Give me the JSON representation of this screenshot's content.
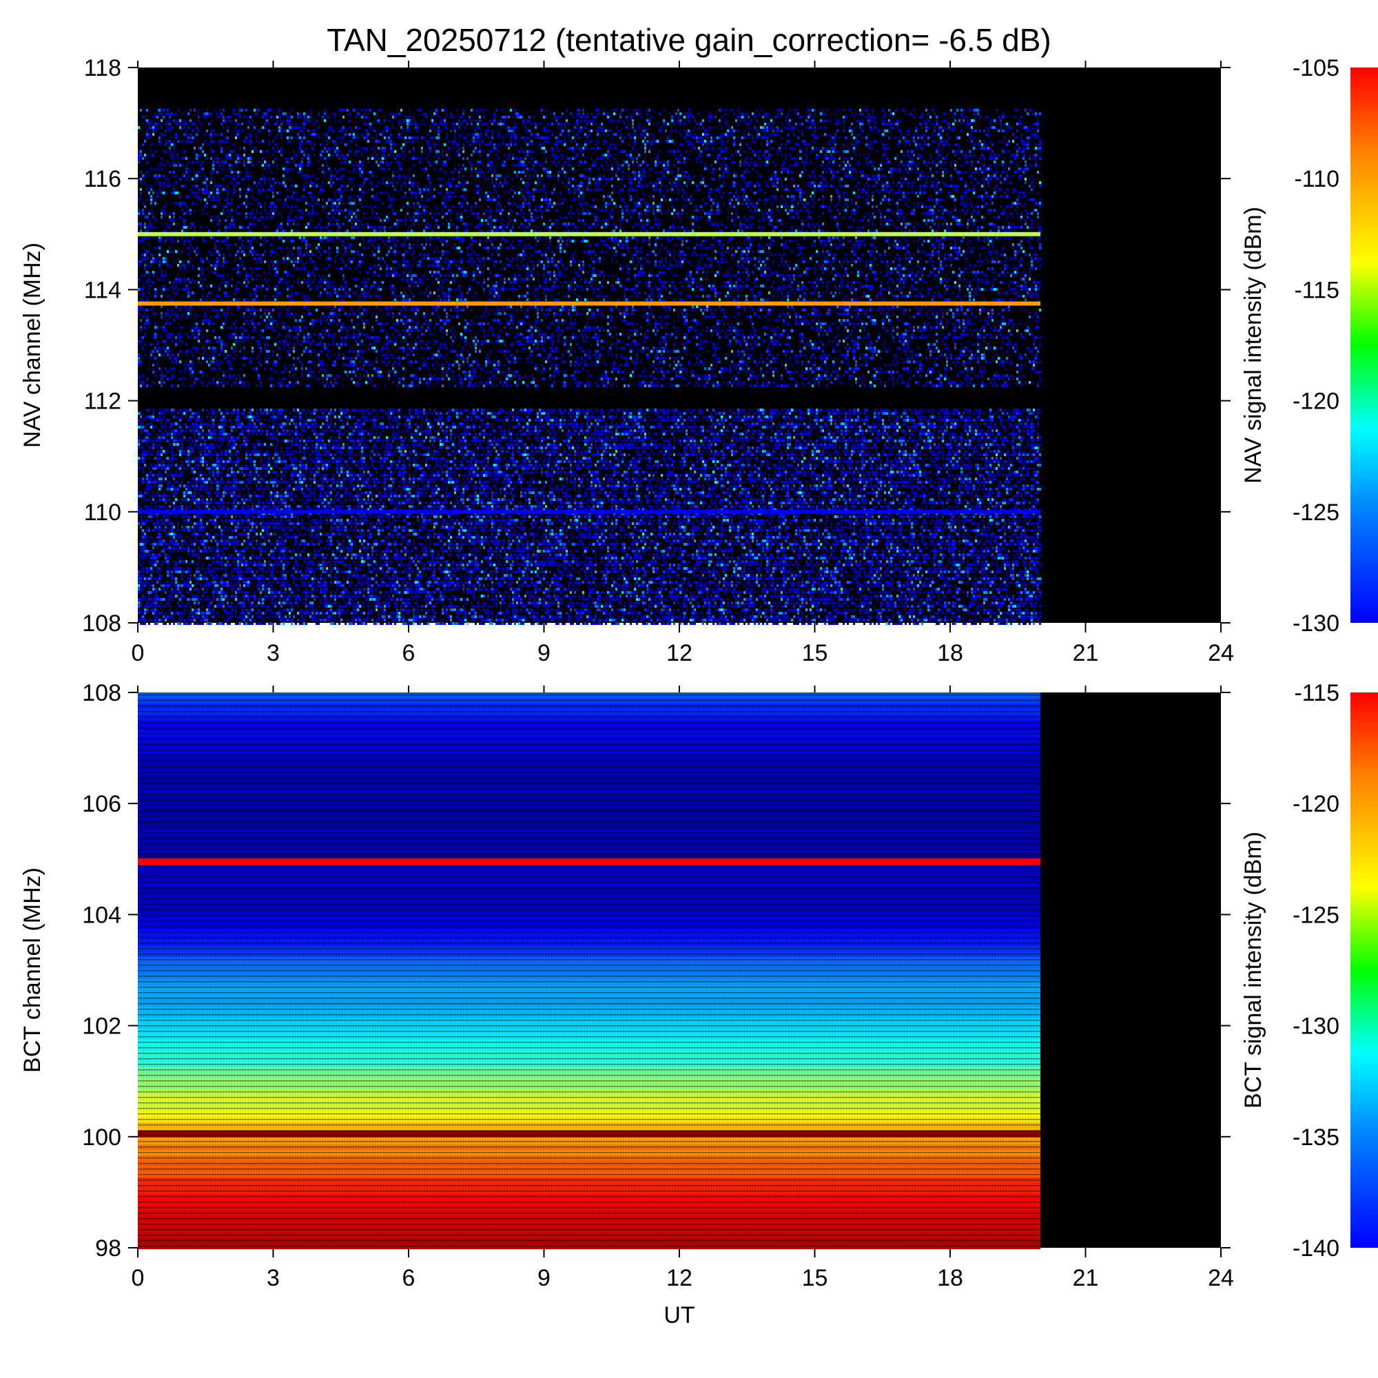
{
  "chart_data": [
    {
      "type": "heatmap",
      "panel": "NAV",
      "title": "TAN_20250712 (tentative gain_correction= -6.5 dB)",
      "xlabel": "",
      "ylabel": "NAV channel (MHz)",
      "xlim": [
        0,
        24
      ],
      "ylim": [
        108,
        118
      ],
      "x_ticks": [
        0,
        3,
        6,
        9,
        12,
        15,
        18,
        21,
        24
      ],
      "y_ticks": [
        108,
        110,
        112,
        114,
        116,
        118
      ],
      "data_end_ut": 20,
      "gap_band_mhz": [
        112.0,
        112.2
      ],
      "strong_lines": [
        {
          "freq_mhz": 113.75,
          "level_dbm": -112
        },
        {
          "freq_mhz": 115.0,
          "level_dbm": -116
        }
      ],
      "weak_lines": [
        {
          "freq_mhz": 110.0,
          "level_dbm": -127
        }
      ],
      "background_level_dbm": -128,
      "colorbar": {
        "label": "NAV signal intensity (dBm)",
        "range": [
          -130,
          -105
        ],
        "ticks": [
          -105,
          -110,
          -115,
          -120,
          -125,
          -130
        ]
      }
    },
    {
      "type": "heatmap",
      "panel": "BCT",
      "title": "",
      "xlabel": "UT",
      "ylabel": "BCT channel (MHz)",
      "xlim": [
        0,
        24
      ],
      "ylim": [
        98,
        108
      ],
      "x_ticks": [
        0,
        3,
        6,
        9,
        12,
        15,
        18,
        21,
        24
      ],
      "y_ticks": [
        98,
        100,
        102,
        104,
        106,
        108
      ],
      "data_end_ut": 20,
      "gradient_dbm": [
        {
          "freq_mhz": 98.0,
          "level_dbm": -116
        },
        {
          "freq_mhz": 99.0,
          "level_dbm": -119
        },
        {
          "freq_mhz": 100.0,
          "level_dbm": -122
        },
        {
          "freq_mhz": 101.5,
          "level_dbm": -130
        },
        {
          "freq_mhz": 103.0,
          "level_dbm": -134
        },
        {
          "freq_mhz": 104.0,
          "level_dbm": -138
        },
        {
          "freq_mhz": 106.0,
          "level_dbm": -139
        },
        {
          "freq_mhz": 107.0,
          "level_dbm": -138
        },
        {
          "freq_mhz": 108.0,
          "level_dbm": -135
        }
      ],
      "strong_lines": [
        {
          "freq_mhz": 100.05,
          "level_dbm": -115
        },
        {
          "freq_mhz": 104.95,
          "level_dbm": -118
        }
      ],
      "colorbar": {
        "label": "BCT signal intensity (dBm)",
        "range": [
          -140,
          -115
        ],
        "ticks": [
          -115,
          -120,
          -125,
          -130,
          -135,
          -140
        ]
      }
    }
  ]
}
